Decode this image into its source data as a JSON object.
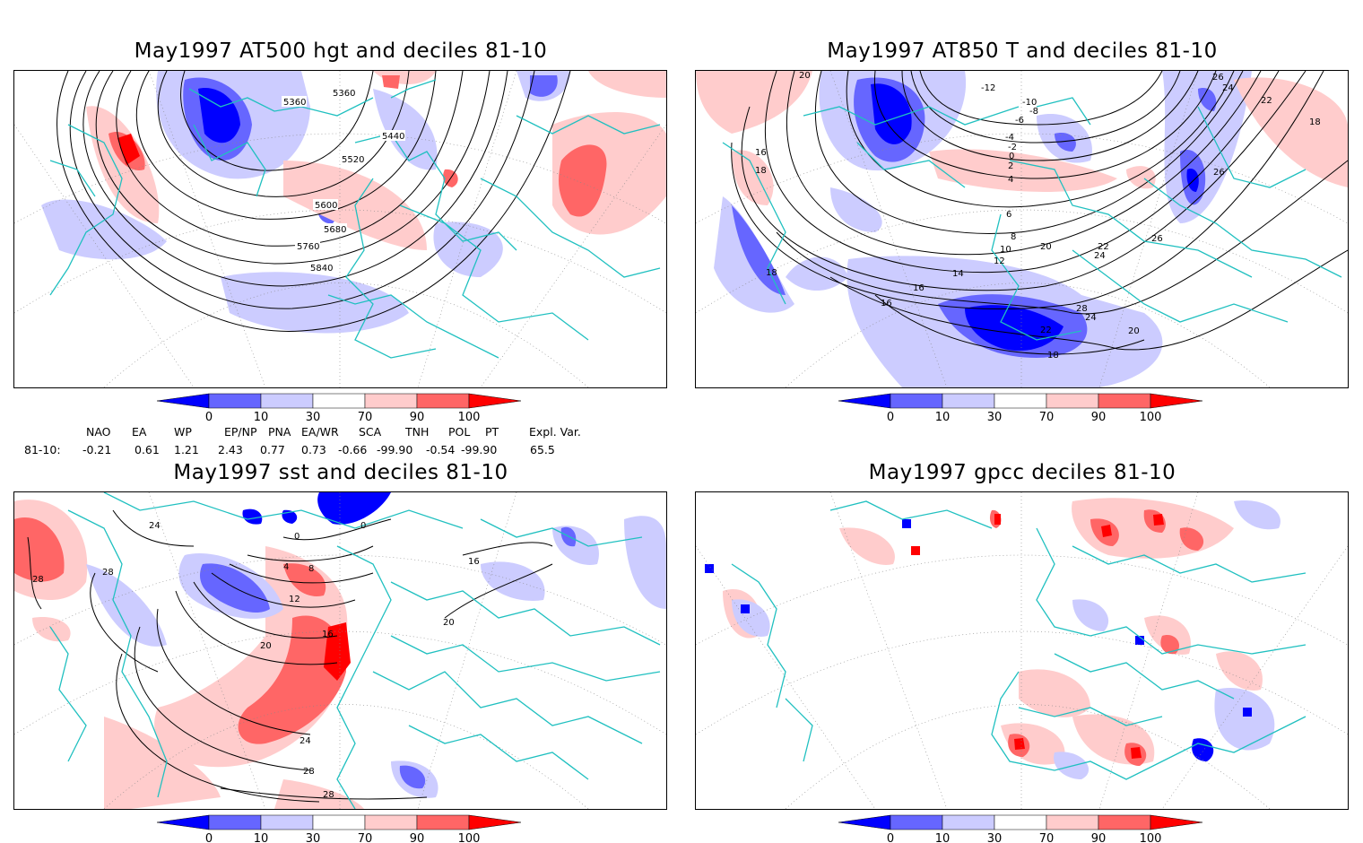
{
  "panels": [
    {
      "id": "hgt",
      "title": "May1997 AT500 hgt and deciles 81-10",
      "contour_labels": [
        "5360",
        "5360",
        "5440",
        "5520",
        "5600",
        "5680",
        "5760",
        "5840"
      ]
    },
    {
      "id": "t850",
      "title": "May1997 AT850 T and deciles 81-10",
      "contour_labels": [
        "20",
        "-12",
        "-10",
        "-8",
        "-6",
        "-4",
        "-2",
        "0",
        "2",
        "4",
        "6",
        "8",
        "10",
        "12",
        "14",
        "16",
        "16",
        "18",
        "18",
        "20",
        "20",
        "22",
        "22",
        "22",
        "24",
        "24",
        "24",
        "26",
        "26",
        "26",
        "28",
        "16",
        "18",
        "18"
      ]
    },
    {
      "id": "sst",
      "title": "May1997 sst and deciles 81-10",
      "contour_labels": [
        "24",
        "28",
        "28",
        "0",
        "0",
        "4",
        "8",
        "12",
        "16",
        "20",
        "20",
        "16",
        "24",
        "28",
        "28"
      ]
    },
    {
      "id": "gpcc",
      "title": "May1997 gpcc deciles 81-10",
      "contour_labels": []
    }
  ],
  "colorbar": {
    "ticks": [
      "0",
      "10",
      "30",
      "70",
      "90",
      "100"
    ],
    "colors": [
      "#0000ff",
      "#6666ff",
      "#ccccff",
      "#ffffff",
      "#ffcccc",
      "#ff6666",
      "#ff0000"
    ]
  },
  "indices": {
    "headers": [
      "NAO",
      "EA",
      "WP",
      "EP/NP",
      "PNA",
      "EA/WR",
      "SCA",
      "TNH",
      "POL",
      "PT",
      "Expl. Var."
    ],
    "row_label": "81-10:",
    "values": [
      "-0.21",
      "0.61",
      "1.21",
      "2.43",
      "0.77",
      "0.73",
      "-0.66",
      "-99.90",
      "-0.54",
      "-99.90",
      "65.5"
    ]
  },
  "colors": {
    "coast": "#20c0c0",
    "frame": "#000000",
    "contour": "#000000",
    "grid": "#888888"
  }
}
